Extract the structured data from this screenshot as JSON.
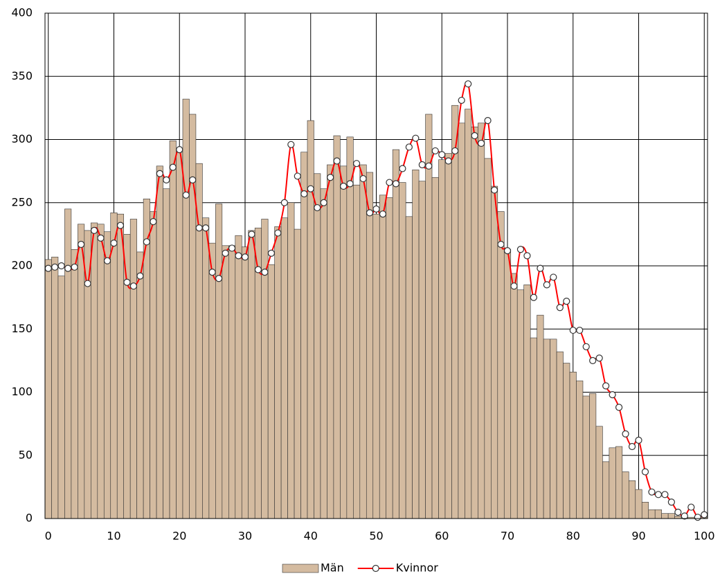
{
  "chart_data": {
    "type": "bar",
    "x": [
      0,
      1,
      2,
      3,
      4,
      5,
      6,
      7,
      8,
      9,
      10,
      11,
      12,
      13,
      14,
      15,
      16,
      17,
      18,
      19,
      20,
      21,
      22,
      23,
      24,
      25,
      26,
      27,
      28,
      29,
      30,
      31,
      32,
      33,
      34,
      35,
      36,
      37,
      38,
      39,
      40,
      41,
      42,
      43,
      44,
      45,
      46,
      47,
      48,
      49,
      50,
      51,
      52,
      53,
      54,
      55,
      56,
      57,
      58,
      59,
      60,
      61,
      62,
      63,
      64,
      65,
      66,
      67,
      68,
      69,
      70,
      71,
      72,
      73,
      74,
      75,
      76,
      77,
      78,
      79,
      80,
      81,
      82,
      83,
      84,
      85,
      86,
      87,
      88,
      89,
      90,
      91,
      92,
      93,
      94,
      95,
      96,
      97,
      98,
      99,
      100
    ],
    "series": [
      {
        "name": "Män",
        "type": "bar",
        "color": "#d4bba0",
        "values": [
          205,
          207,
          192,
          245,
          213,
          233,
          228,
          234,
          233,
          227,
          242,
          241,
          225,
          237,
          211,
          253,
          243,
          279,
          261,
          299,
          290,
          332,
          320,
          281,
          238,
          218,
          249,
          216,
          216,
          224,
          215,
          228,
          230,
          237,
          201,
          231,
          238,
          250,
          229,
          290,
          315,
          273,
          261,
          280,
          303,
          279,
          302,
          264,
          280,
          274,
          241,
          256,
          254,
          292,
          266,
          239,
          276,
          267,
          320,
          270,
          284,
          289,
          327,
          313,
          324,
          310,
          313,
          285,
          263,
          243,
          213,
          194,
          181,
          185,
          143,
          161,
          142,
          142,
          132,
          123,
          116,
          109,
          97,
          99,
          73,
          45,
          56,
          57,
          37,
          30,
          23,
          13,
          7,
          7,
          4,
          4,
          2,
          1,
          1,
          1,
          1
        ]
      },
      {
        "name": "Kvinnor",
        "type": "line",
        "color": "#ff0000",
        "values": [
          198,
          199,
          200,
          198,
          199,
          217,
          186,
          228,
          222,
          204,
          218,
          232,
          187,
          184,
          192,
          219,
          235,
          273,
          268,
          278,
          292,
          256,
          268,
          230,
          230,
          195,
          190,
          210,
          214,
          208,
          207,
          225,
          197,
          195,
          210,
          226,
          250,
          296,
          271,
          257,
          261,
          246,
          250,
          270,
          283,
          263,
          265,
          281,
          269,
          242,
          245,
          241,
          266,
          265,
          277,
          294,
          301,
          280,
          279,
          291,
          288,
          283,
          291,
          331,
          344,
          303,
          297,
          315,
          260,
          217,
          212,
          184,
          213,
          208,
          175,
          198,
          185,
          191,
          167,
          172,
          149,
          149,
          136,
          125,
          127,
          105,
          98,
          88,
          67,
          57,
          62,
          37,
          21,
          19,
          19,
          13,
          5,
          2,
          9,
          1,
          3
        ]
      }
    ],
    "xlim": [
      -0.5,
      100.5
    ],
    "xticks": [
      0,
      10,
      20,
      30,
      40,
      50,
      60,
      70,
      80,
      90,
      100
    ],
    "ylim": [
      0,
      400
    ],
    "yticks": [
      0,
      50,
      100,
      150,
      200,
      250,
      300,
      350,
      400
    ],
    "grid": true,
    "legend": "bottom"
  }
}
